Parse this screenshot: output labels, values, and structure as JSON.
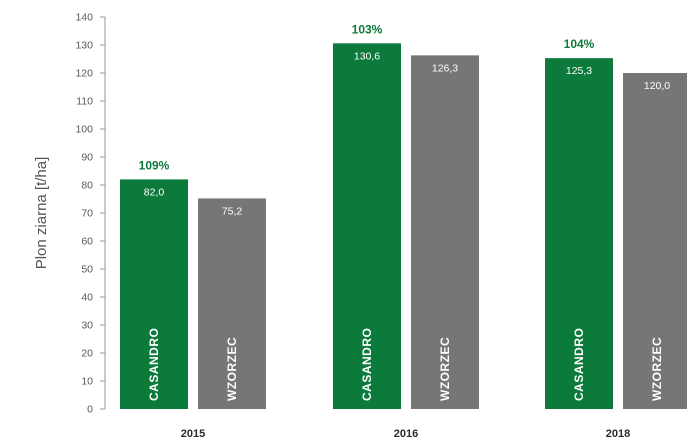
{
  "chart_data": {
    "type": "bar",
    "ylabel": "Plon ziarna [t/ha]",
    "ylim": [
      0,
      140
    ],
    "yticks": [
      0,
      10,
      20,
      30,
      40,
      50,
      60,
      70,
      80,
      90,
      100,
      110,
      120,
      130,
      140
    ],
    "grid": false,
    "categories": [
      "2015",
      "2016",
      "2018"
    ],
    "series": [
      {
        "name": "CASANDRO",
        "color": "#0c7a3a",
        "values": [
          82.0,
          130.6,
          125.3
        ],
        "value_labels": [
          "82,0",
          "130,6",
          "125,3"
        ]
      },
      {
        "name": "WZORZEC",
        "color": "#767676",
        "values": [
          75.2,
          126.3,
          120.0
        ],
        "value_labels": [
          "75,2",
          "126,3",
          "120,0"
        ]
      }
    ],
    "annotations": [
      "109%",
      "103%",
      "104%"
    ],
    "annotation_color": "#0c7a3a"
  }
}
